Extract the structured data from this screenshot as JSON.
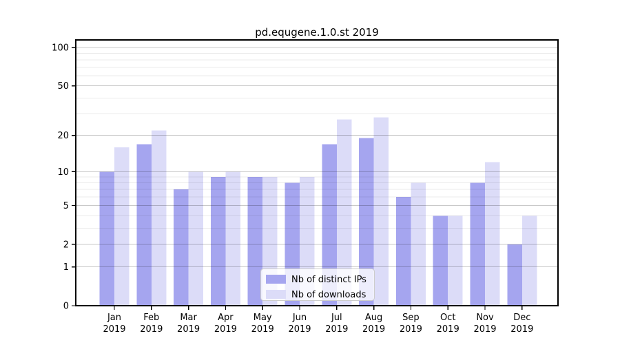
{
  "title": "pd.equgene.1.0.st 2019",
  "chart_data": {
    "type": "bar",
    "title": "pd.equgene.1.0.st 2019",
    "year": "2019",
    "categories": [
      "Jan 2019",
      "Feb 2019",
      "Mar 2019",
      "Apr 2019",
      "May 2019",
      "Jun 2019",
      "Jul 2019",
      "Aug 2019",
      "Sep 2019",
      "Oct 2019",
      "Nov 2019",
      "Dec 2019"
    ],
    "months": [
      "Jan",
      "Feb",
      "Mar",
      "Apr",
      "May",
      "Jun",
      "Jul",
      "Aug",
      "Sep",
      "Oct",
      "Nov",
      "Dec"
    ],
    "series": [
      {
        "name": "Nb of distinct IPs",
        "color": "#a5a5ef",
        "values": [
          10,
          17,
          7,
          9,
          9,
          8,
          17,
          19,
          6,
          4,
          8,
          2
        ]
      },
      {
        "name": "Nb of downloads",
        "color": "#dcdcf8",
        "values": [
          16,
          22,
          10,
          10,
          9,
          9,
          27,
          28,
          8,
          4,
          12,
          4
        ]
      }
    ],
    "y_scale": "log10(1+y)",
    "y_tick_labels": [
      "0",
      "1",
      "2",
      "5",
      "10",
      "20",
      "50",
      "100"
    ],
    "y_major_ticks": [
      0,
      1,
      2,
      5,
      10,
      20,
      50,
      100
    ],
    "y_minor_gridlines": [
      3,
      4,
      6,
      7,
      8,
      9,
      30,
      40,
      60,
      70,
      80,
      90
    ],
    "ylim": [
      0,
      115
    ],
    "grid": "horizontal major+minor",
    "legend_position": "lower center",
    "legend_items": [
      "Nb of distinct IPs",
      "Nb of downloads"
    ]
  }
}
